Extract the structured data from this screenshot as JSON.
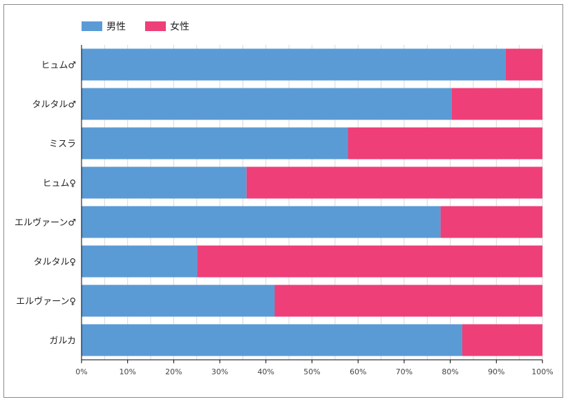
{
  "colors": {
    "male": "#5b9bd5",
    "female": "#ee3f78",
    "grid": "#d9d9d9",
    "axis": "#000000"
  },
  "chart_data": {
    "type": "bar",
    "orientation": "horizontal",
    "stacked": true,
    "percent_stacked": true,
    "categories": [
      "ヒュム♂",
      "タルタル♂",
      "ミスラ",
      "ヒュム♀",
      "エルヴァーン♂",
      "タルタル♀",
      "エルヴァーン♀",
      "ガルカ"
    ],
    "series": [
      {
        "name": "男性",
        "color": "#5b9bd5",
        "values": [
          92,
          80.3,
          57.8,
          35.8,
          77.9,
          25.1,
          41.9,
          82.6
        ]
      },
      {
        "name": "女性",
        "color": "#ee3f78",
        "values": [
          8,
          19.7,
          42.2,
          64.2,
          22.1,
          74.9,
          58.1,
          17.4
        ]
      }
    ],
    "xlim": [
      0,
      100
    ],
    "xticks": [
      "0%",
      "10%",
      "20%",
      "30%",
      "40%",
      "50%",
      "60%",
      "70%",
      "80%",
      "90%",
      "100%"
    ],
    "legend_position": "top-left",
    "grid": true
  }
}
